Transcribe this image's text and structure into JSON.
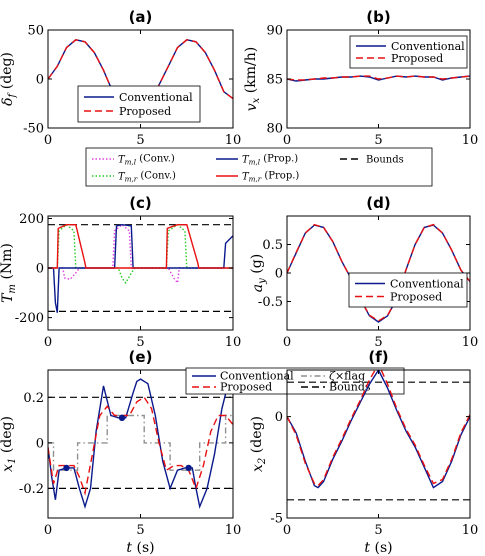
{
  "legend_top": {
    "items": [
      {
        "label": "T_m,l (Conv.)",
        "color": "#e040e0",
        "style": "dotted"
      },
      {
        "label": "T_m,l (Prop.)",
        "color": "#0a1a8c",
        "style": "solid"
      },
      {
        "label": "Bounds",
        "color": "#000000",
        "style": "dashed"
      },
      {
        "label": "T_m,r (Conv.)",
        "color": "#22cc22",
        "style": "dotted"
      },
      {
        "label": "T_m,r (Prop.)",
        "color": "#e81010",
        "style": "solid"
      }
    ]
  },
  "colors": {
    "conventional": "#0a1a8c",
    "proposed": "#e81010",
    "bounds": "#000000",
    "flag": "#909090"
  },
  "chart_data": [
    {
      "id": "a",
      "type": "line",
      "title": "(a)",
      "xlabel": "",
      "ylabel": "δ_f (deg)",
      "xlim": [
        0,
        10
      ],
      "ylim": [
        -50,
        50
      ],
      "xticks": [
        0,
        5,
        10
      ],
      "yticks": [
        -50,
        0,
        50
      ],
      "legend": [
        "Conventional",
        "Proposed"
      ],
      "series": [
        {
          "name": "Conventional",
          "color": "#0a1a8c",
          "dash": "solid",
          "x": [
            0,
            0.5,
            1,
            1.5,
            2,
            2.5,
            3,
            3.2,
            3.5,
            4,
            4.5,
            5,
            5.5,
            6,
            6.5,
            7,
            7.5,
            8,
            8.5,
            9,
            9.5,
            10
          ],
          "y": [
            0,
            13,
            32,
            40,
            38,
            27,
            9,
            0,
            -13,
            -32,
            -40,
            -36,
            -25,
            -6,
            13,
            32,
            40,
            38,
            27,
            9,
            -13,
            -20
          ]
        },
        {
          "name": "Proposed",
          "color": "#e81010",
          "dash": "dashed",
          "x": [
            0,
            0.5,
            1,
            1.5,
            2,
            2.5,
            3,
            3.2,
            3.5,
            4,
            4.5,
            5,
            5.5,
            6,
            6.5,
            7,
            7.5,
            8,
            8.5,
            9,
            9.5,
            10
          ],
          "y": [
            0,
            13,
            32,
            40,
            38,
            27,
            9,
            0,
            -13,
            -32,
            -40,
            -36,
            -25,
            -6,
            13,
            32,
            40,
            38,
            27,
            9,
            -13,
            -20
          ]
        }
      ]
    },
    {
      "id": "b",
      "type": "line",
      "title": "(b)",
      "xlabel": "",
      "ylabel": "v_x (km/h)",
      "xlim": [
        0,
        10
      ],
      "ylim": [
        80,
        90
      ],
      "xticks": [
        0,
        5,
        10
      ],
      "yticks": [
        80,
        85,
        90
      ],
      "legend": [
        "Conventional",
        "Proposed"
      ],
      "series": [
        {
          "name": "Conventional",
          "color": "#0a1a8c",
          "dash": "solid",
          "x": [
            0,
            0.5,
            1,
            1.5,
            2,
            2.5,
            3,
            3.5,
            4,
            4.5,
            5,
            5.5,
            6,
            6.5,
            7,
            7.5,
            8,
            8.5,
            9,
            9.5,
            10
          ],
          "y": [
            85,
            84.8,
            84.9,
            85,
            85,
            85.1,
            85.2,
            85.2,
            85.3,
            85.2,
            84.9,
            85.1,
            85.3,
            85.2,
            85.3,
            85.2,
            85.2,
            84.9,
            85.1,
            85.2,
            85.3
          ]
        },
        {
          "name": "Proposed",
          "color": "#e81010",
          "dash": "dashed",
          "x": [
            0,
            0.5,
            1,
            1.5,
            2,
            2.5,
            3,
            3.5,
            4,
            4.5,
            5,
            5.5,
            6,
            6.5,
            7,
            7.5,
            8,
            8.5,
            9,
            9.5,
            10
          ],
          "y": [
            85,
            84.9,
            84.9,
            85,
            85.1,
            85.1,
            85.2,
            85.2,
            85.3,
            85.3,
            85.0,
            85.1,
            85.3,
            85.2,
            85.3,
            85.2,
            85.2,
            85.0,
            85.1,
            85.2,
            85.3
          ]
        }
      ]
    },
    {
      "id": "c",
      "type": "line",
      "title": "(c)",
      "xlabel": "",
      "ylabel": "T_m (Nm)",
      "xlim": [
        0,
        10
      ],
      "ylim": [
        -250,
        210
      ],
      "xticks": [
        0,
        5,
        10
      ],
      "yticks": [
        -200,
        0,
        200
      ],
      "series": [
        {
          "name": "Bounds",
          "color": "#000000",
          "dash": "dashed",
          "x": [
            0,
            10
          ],
          "y": [
            175,
            175
          ]
        },
        {
          "name": "Bounds",
          "color": "#000000",
          "dash": "dashed",
          "x": [
            0,
            10
          ],
          "y": [
            -175,
            -175
          ]
        },
        {
          "name": "T_m,l (Conv.)",
          "color": "#e040e0",
          "dash": "dotted",
          "x": [
            0,
            0.8,
            0.9,
            1.2,
            1.5,
            1.7,
            1.9,
            3.5,
            3.6,
            4,
            4.4,
            4.5,
            6,
            6.5,
            6.8,
            7,
            7.1,
            8.5,
            9.8,
            10
          ],
          "y": [
            0,
            0,
            -40,
            -45,
            -20,
            0,
            0,
            0,
            150,
            175,
            150,
            0,
            0,
            0,
            -40,
            -60,
            0,
            0,
            0,
            0
          ]
        },
        {
          "name": "T_m,r (Conv.)",
          "color": "#22cc22",
          "dash": "dotted",
          "x": [
            0,
            0.5,
            0.6,
            1,
            1.4,
            1.5,
            3.8,
            4,
            4.2,
            4.5,
            4.7,
            6,
            6.4,
            6.5,
            7,
            7.4,
            7.5,
            9.5,
            10
          ],
          "y": [
            0,
            0,
            150,
            175,
            150,
            0,
            0,
            -40,
            -60,
            -20,
            0,
            0,
            0,
            150,
            175,
            150,
            0,
            0,
            0
          ]
        },
        {
          "name": "T_m,l (Prop.)",
          "color": "#0a1a8c",
          "dash": "solid",
          "x": [
            0,
            0.3,
            0.4,
            0.5,
            0.6,
            1.0,
            1.9,
            2.0,
            3.6,
            3.7,
            4.0,
            4.5,
            4.6,
            6.5,
            6.6,
            7.0,
            7.5,
            7.6,
            9.5,
            9.6,
            10
          ],
          "y": [
            0,
            0,
            -140,
            -180,
            0,
            0,
            0,
            0,
            0,
            170,
            175,
            170,
            0,
            0,
            0,
            0,
            0,
            0,
            0,
            100,
            130
          ]
        },
        {
          "name": "T_m,r (Prop.)",
          "color": "#e81010",
          "dash": "solid",
          "x": [
            0,
            0.5,
            0.55,
            1.0,
            1.5,
            2.0,
            2.05,
            3.5,
            3.8,
            4.5,
            5.0,
            6.4,
            6.45,
            7.0,
            7.5,
            8.1,
            8.15,
            10
          ],
          "y": [
            0,
            0,
            160,
            175,
            175,
            20,
            0,
            0,
            0,
            0,
            0,
            0,
            160,
            175,
            175,
            20,
            0,
            0
          ]
        }
      ]
    },
    {
      "id": "d",
      "type": "line",
      "title": "(d)",
      "xlabel": "",
      "ylabel": "a_y (g)",
      "xlim": [
        0,
        10
      ],
      "ylim": [
        -1,
        1
      ],
      "xticks": [
        0,
        5,
        10
      ],
      "yticks": [
        -0.5,
        0,
        0.5
      ],
      "legend": [
        "Conventional",
        "Proposed"
      ],
      "series": [
        {
          "name": "Conventional",
          "color": "#0a1a8c",
          "dash": "solid",
          "x": [
            0,
            0.5,
            1,
            1.5,
            2,
            2.5,
            3,
            3.5,
            4,
            4.5,
            5,
            5.5,
            6,
            6.5,
            7,
            7.5,
            8,
            8.5,
            9,
            9.5,
            10
          ],
          "y": [
            0,
            0.35,
            0.7,
            0.84,
            0.8,
            0.55,
            0.2,
            -0.1,
            -0.45,
            -0.75,
            -0.86,
            -0.75,
            -0.45,
            0.05,
            0.5,
            0.8,
            0.84,
            0.7,
            0.4,
            0.05,
            -0.15
          ]
        },
        {
          "name": "Proposed",
          "color": "#e81010",
          "dash": "dashed",
          "x": [
            0,
            0.5,
            1,
            1.5,
            2,
            2.5,
            3,
            3.5,
            4,
            4.5,
            5,
            5.5,
            6,
            6.5,
            7,
            7.5,
            8,
            8.5,
            9,
            9.5,
            10
          ],
          "y": [
            0,
            0.36,
            0.7,
            0.85,
            0.8,
            0.55,
            0.2,
            -0.1,
            -0.45,
            -0.74,
            -0.84,
            -0.74,
            -0.45,
            0.05,
            0.5,
            0.8,
            0.85,
            0.7,
            0.4,
            0.05,
            -0.15
          ]
        }
      ]
    },
    {
      "id": "e",
      "type": "line",
      "title": "(e)",
      "xlabel": "t (s)",
      "ylabel": "x_1 (deg)",
      "xlim": [
        0,
        10
      ],
      "ylim": [
        -0.33,
        0.32
      ],
      "xticks": [
        0,
        5,
        10
      ],
      "yticks": [
        -0.2,
        0,
        0.2
      ],
      "legend": [
        "Conventional",
        "ζ×flag",
        "Proposed",
        "Bounds"
      ],
      "series": [
        {
          "name": "Bounds",
          "color": "#000000",
          "dash": "dashed",
          "x": [
            0,
            10
          ],
          "y": [
            0.2,
            0.2
          ]
        },
        {
          "name": "Bounds",
          "color": "#000000",
          "dash": "dashed",
          "x": [
            0,
            10
          ],
          "y": [
            -0.2,
            -0.2
          ]
        },
        {
          "name": "ζ×flag",
          "color": "#909090",
          "dash": "dashdot",
          "x": [
            0,
            0.3,
            0.3,
            1.6,
            1.6,
            3.2,
            3.2,
            5.2,
            5.2,
            6.6,
            6.6,
            8.2,
            8.2,
            9.6,
            9.6,
            10
          ],
          "y": [
            0,
            0,
            -0.12,
            -0.12,
            0,
            0,
            0.12,
            0.12,
            0,
            0,
            -0.12,
            -0.12,
            0,
            0,
            0.12,
            0.12
          ]
        },
        {
          "name": "Conventional",
          "color": "#0a1a8c",
          "dash": "solid",
          "x": [
            0,
            0.2,
            0.4,
            0.6,
            1.0,
            1.4,
            1.7,
            2.0,
            2.3,
            2.6,
            3.0,
            3.4,
            3.8,
            4.2,
            4.6,
            4.8,
            5.0,
            5.4,
            5.8,
            6.2,
            6.6,
            7.0,
            7.4,
            7.8,
            8.0,
            8.2,
            8.6,
            9.0,
            9.4,
            9.8,
            10
          ],
          "y": [
            -0.02,
            -0.15,
            -0.25,
            -0.12,
            -0.11,
            -0.11,
            -0.2,
            -0.28,
            -0.2,
            0.05,
            0.25,
            0.12,
            0.11,
            0.11,
            0.22,
            0.27,
            0.28,
            0.26,
            0.12,
            -0.08,
            -0.2,
            -0.12,
            -0.11,
            -0.11,
            -0.2,
            -0.28,
            -0.2,
            -0.05,
            0.15,
            0.28,
            0.3
          ]
        },
        {
          "name": "Proposed",
          "color": "#e81010",
          "dash": "dashed",
          "x": [
            0,
            0.3,
            0.6,
            1.0,
            1.4,
            1.7,
            2.0,
            2.4,
            2.8,
            3.2,
            3.6,
            4.0,
            4.4,
            4.8,
            5.2,
            5.6,
            6.0,
            6.4,
            6.8,
            7.2,
            7.6,
            8.0,
            8.4,
            8.8,
            9.2,
            9.6,
            10
          ],
          "y": [
            -0.02,
            -0.18,
            -0.1,
            -0.1,
            -0.1,
            -0.15,
            -0.22,
            -0.05,
            0.12,
            0.16,
            0.12,
            0.12,
            0.12,
            0.18,
            0.2,
            0.15,
            0.0,
            -0.12,
            -0.1,
            -0.1,
            -0.12,
            -0.2,
            -0.1,
            0.05,
            0.12,
            0.12,
            0.08
          ]
        }
      ]
    },
    {
      "id": "f",
      "type": "line",
      "title": "(f)",
      "xlabel": "t (s)",
      "ylabel": "x_2 (deg)",
      "xlim": [
        0,
        10
      ],
      "ylim": [
        -5,
        2.3
      ],
      "xticks": [
        0,
        5,
        10
      ],
      "yticks": [
        -5,
        0
      ],
      "series": [
        {
          "name": "Bounds",
          "color": "#000000",
          "dash": "dashed",
          "x": [
            0,
            10
          ],
          "y": [
            1.7,
            1.7
          ]
        },
        {
          "name": "Bounds",
          "color": "#000000",
          "dash": "dashed",
          "x": [
            0,
            10
          ],
          "y": [
            -4.1,
            -4.1
          ]
        },
        {
          "name": "Conventional",
          "color": "#0a1a8c",
          "dash": "solid",
          "x": [
            0,
            0.5,
            1,
            1.5,
            1.7,
            2,
            2.5,
            3,
            3.5,
            4,
            4.5,
            5,
            5.5,
            6,
            6.5,
            7,
            7.5,
            8,
            8.5,
            9,
            9.5,
            10
          ],
          "y": [
            0,
            -0.8,
            -2.2,
            -3.4,
            -3.5,
            -3.2,
            -2.1,
            -1.2,
            -0.2,
            0.7,
            1.6,
            2.3,
            1.4,
            0.3,
            -0.7,
            -1.5,
            -2.5,
            -3.5,
            -3.2,
            -2.2,
            -0.9,
            0
          ]
        },
        {
          "name": "Proposed",
          "color": "#e81010",
          "dash": "dashed",
          "x": [
            0,
            0.5,
            1,
            1.5,
            1.7,
            2,
            2.5,
            3,
            3.5,
            4,
            4.5,
            5,
            5.5,
            6,
            6.5,
            7,
            7.5,
            8,
            8.5,
            9,
            9.5,
            10
          ],
          "y": [
            0,
            -0.9,
            -2.3,
            -3.3,
            -3.4,
            -3.1,
            -2.0,
            -1.1,
            -0.1,
            0.8,
            1.8,
            2.6,
            1.6,
            0.4,
            -0.6,
            -1.4,
            -2.4,
            -3.3,
            -3.1,
            -2.1,
            -0.8,
            0.1
          ]
        }
      ]
    }
  ]
}
